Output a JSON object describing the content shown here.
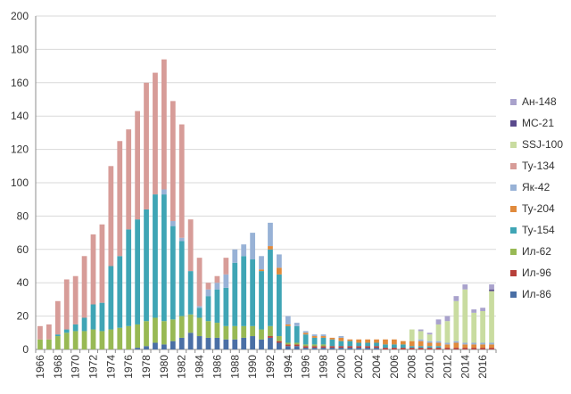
{
  "chart_data": {
    "type": "bar",
    "stacked": true,
    "title": "",
    "xlabel": "",
    "ylabel": "",
    "ylim": [
      0,
      200
    ],
    "yticks": [
      0,
      20,
      40,
      60,
      80,
      100,
      120,
      140,
      160,
      180,
      200
    ],
    "grid": true,
    "legend_position": "right",
    "categories": [
      "1966",
      "1967",
      "1968",
      "1969",
      "1970",
      "1971",
      "1972",
      "1973",
      "1974",
      "1975",
      "1976",
      "1977",
      "1978",
      "1979",
      "1980",
      "1981",
      "1982",
      "1983",
      "1984",
      "1985",
      "1986",
      "1987",
      "1988",
      "1989",
      "1990",
      "1991",
      "1992",
      "1993",
      "1994",
      "1995",
      "1996",
      "1997",
      "1998",
      "1999",
      "2000",
      "2001",
      "2002",
      "2003",
      "2004",
      "2005",
      "2006",
      "2007",
      "2008",
      "2009",
      "2010",
      "2011",
      "2012",
      "2013",
      "2014",
      "2015",
      "2016",
      "2017"
    ],
    "xtick_labels": [
      "1966",
      "1968",
      "1970",
      "1972",
      "1974",
      "1976",
      "1978",
      "1980",
      "1982",
      "1984",
      "1986",
      "1988",
      "1990",
      "1992",
      "1994",
      "1996",
      "1998",
      "2000",
      "2002",
      "2004",
      "2006",
      "2008",
      "2010",
      "2012",
      "2014",
      "2016"
    ],
    "series": [
      {
        "name": "Ил-86",
        "color": "#4a6fa5",
        "values": [
          0,
          0,
          0,
          0,
          0,
          0,
          0,
          0,
          0,
          0,
          0,
          1,
          2,
          4,
          3,
          5,
          7,
          10,
          8,
          7,
          7,
          6,
          6,
          7,
          8,
          6,
          7,
          4,
          2,
          2,
          1,
          1,
          1,
          1,
          1,
          1,
          1,
          1,
          1,
          0,
          0,
          0,
          0,
          0,
          0,
          0,
          0,
          0,
          0,
          0,
          0,
          0
        ]
      },
      {
        "name": "Ил-96",
        "color": "#b7403a",
        "values": [
          0,
          0,
          0,
          0,
          0,
          0,
          0,
          0,
          0,
          0,
          0,
          0,
          0,
          0,
          0,
          0,
          0,
          0,
          0,
          0,
          0,
          0,
          0,
          0,
          0,
          0,
          1,
          1,
          1,
          1,
          1,
          1,
          1,
          1,
          1,
          1,
          1,
          1,
          1,
          1,
          1,
          1,
          1,
          1,
          1,
          1,
          1,
          1,
          1,
          1,
          1,
          1
        ]
      },
      {
        "name": "Ил-62",
        "color": "#98b954",
        "values": [
          6,
          6,
          8,
          10,
          11,
          11,
          12,
          11,
          12,
          13,
          14,
          14,
          15,
          15,
          14,
          13,
          13,
          11,
          11,
          10,
          9,
          8,
          8,
          7,
          6,
          6,
          6,
          3,
          1,
          1,
          1,
          1,
          1,
          0,
          0,
          0,
          0,
          0,
          0,
          0,
          0,
          0,
          0,
          0,
          0,
          0,
          0,
          0,
          0,
          0,
          0,
          0
        ]
      },
      {
        "name": "Ту-154",
        "color": "#3fa5b5",
        "values": [
          0,
          0,
          1,
          2,
          4,
          8,
          15,
          17,
          38,
          43,
          58,
          63,
          67,
          74,
          76,
          56,
          45,
          26,
          6,
          15,
          20,
          23,
          38,
          42,
          40,
          35,
          46,
          37,
          10,
          10,
          6,
          4,
          4,
          4,
          3,
          3,
          2,
          2,
          2,
          2,
          2,
          2,
          1,
          1,
          1,
          1,
          0,
          0,
          0,
          0,
          0,
          0
        ]
      },
      {
        "name": "Ту-204",
        "color": "#e08a3c",
        "values": [
          0,
          0,
          0,
          0,
          0,
          0,
          0,
          0,
          0,
          0,
          0,
          0,
          0,
          0,
          0,
          0,
          0,
          0,
          0,
          0,
          0,
          0,
          0,
          0,
          0,
          1,
          2,
          4,
          1,
          0,
          1,
          1,
          1,
          1,
          2,
          1,
          2,
          2,
          2,
          3,
          3,
          2,
          3,
          3,
          2,
          2,
          2,
          3,
          2,
          2,
          2,
          2
        ]
      },
      {
        "name": "Як-42",
        "color": "#98b2d6",
        "values": [
          0,
          0,
          0,
          0,
          0,
          0,
          0,
          0,
          0,
          0,
          0,
          0,
          0,
          0,
          3,
          3,
          2,
          0,
          1,
          4,
          4,
          8,
          8,
          7,
          16,
          8,
          14,
          8,
          5,
          2,
          1,
          1,
          1,
          0,
          1,
          0,
          0,
          0,
          0,
          0,
          0,
          0,
          0,
          1,
          1,
          1,
          1,
          1,
          1,
          1,
          1,
          1
        ]
      },
      {
        "name": "Ту-134",
        "color": "#d79c98",
        "values": [
          8,
          9,
          20,
          30,
          29,
          37,
          42,
          47,
          60,
          69,
          60,
          65,
          76,
          73,
          78,
          72,
          68,
          31,
          29,
          4,
          4,
          10,
          0,
          0,
          0,
          0,
          0,
          0,
          0,
          0,
          0,
          0,
          0,
          0,
          0,
          0,
          0,
          0,
          0,
          0,
          0,
          0,
          0,
          0,
          0,
          0,
          0,
          0,
          0,
          0,
          0,
          0
        ]
      },
      {
        "name": "SSJ-100",
        "color": "#c9dca0",
        "values": [
          0,
          0,
          0,
          0,
          0,
          0,
          0,
          0,
          0,
          0,
          0,
          0,
          0,
          0,
          0,
          0,
          0,
          0,
          0,
          0,
          0,
          0,
          0,
          0,
          0,
          0,
          0,
          0,
          0,
          0,
          0,
          0,
          0,
          0,
          0,
          0,
          0,
          0,
          0,
          0,
          0,
          0,
          7,
          5,
          4,
          10,
          13,
          24,
          32,
          18,
          19,
          31
        ]
      },
      {
        "name": "МС-21",
        "color": "#5a4a8c",
        "values": [
          0,
          0,
          0,
          0,
          0,
          0,
          0,
          0,
          0,
          0,
          0,
          0,
          0,
          0,
          0,
          0,
          0,
          0,
          0,
          0,
          0,
          0,
          0,
          0,
          0,
          0,
          0,
          0,
          0,
          0,
          0,
          0,
          0,
          0,
          0,
          0,
          0,
          0,
          0,
          0,
          0,
          0,
          0,
          0,
          0,
          0,
          0,
          0,
          0,
          0,
          0,
          1
        ]
      },
      {
        "name": "Ан-148",
        "color": "#a9a2cc",
        "values": [
          0,
          0,
          0,
          0,
          0,
          0,
          0,
          0,
          0,
          0,
          0,
          0,
          0,
          0,
          0,
          0,
          0,
          0,
          0,
          0,
          0,
          0,
          0,
          0,
          0,
          0,
          0,
          0,
          0,
          0,
          0,
          0,
          0,
          0,
          0,
          0,
          0,
          0,
          0,
          0,
          0,
          0,
          0,
          1,
          1,
          3,
          3,
          3,
          3,
          2,
          2,
          3
        ]
      }
    ],
    "legend_order": [
      "Ан-148",
      "МС-21",
      "SSJ-100",
      "Ту-134",
      "Як-42",
      "Ту-204",
      "Ту-154",
      "Ил-62",
      "Ил-96",
      "Ил-86"
    ]
  }
}
